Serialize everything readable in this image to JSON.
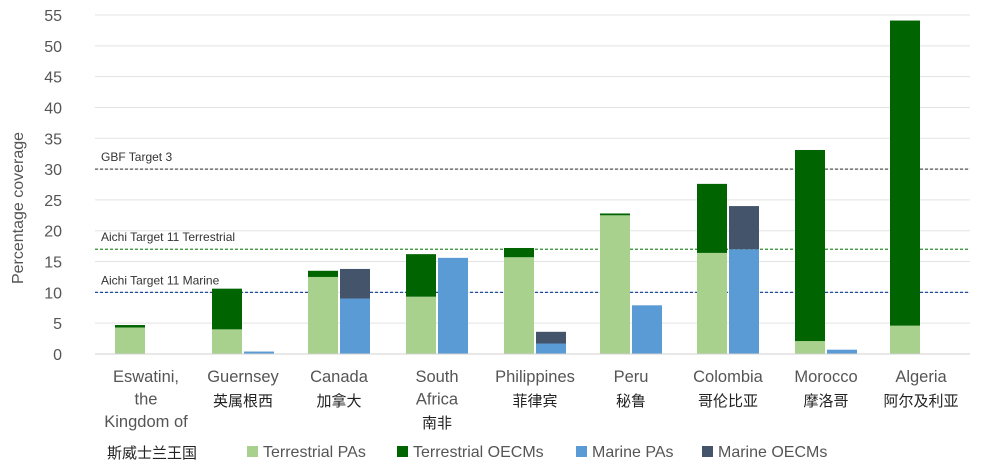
{
  "chart_data": {
    "type": "bar",
    "ylabel": "Percentage coverage",
    "ylim": [
      0,
      55
    ],
    "yticks": [
      0,
      5,
      10,
      15,
      20,
      25,
      30,
      35,
      40,
      45,
      50,
      55
    ],
    "grid": true,
    "categories": [
      {
        "en": [
          "Eswatini,",
          "the",
          "Kingdom of"
        ],
        "zh": "斯威士兰王国"
      },
      {
        "en": [
          "Guernsey"
        ],
        "zh": "英属根西"
      },
      {
        "en": [
          "Canada"
        ],
        "zh": "加拿大"
      },
      {
        "en": [
          "South",
          "Africa"
        ],
        "zh": "南非"
      },
      {
        "en": [
          "Philippines"
        ],
        "zh": "菲律宾"
      },
      {
        "en": [
          "Peru"
        ],
        "zh": "秘鲁"
      },
      {
        "en": [
          "Colombia"
        ],
        "zh": "哥伦比亚"
      },
      {
        "en": [
          "Morocco"
        ],
        "zh": "摩洛哥"
      },
      {
        "en": [
          "Algeria"
        ],
        "zh": "阿尔及利亚"
      }
    ],
    "series": [
      {
        "name": "Terrestrial PAs",
        "color": "#a9d18e",
        "stack": "terrestrial",
        "values": [
          4.3,
          4.0,
          12.5,
          9.3,
          15.7,
          22.5,
          16.4,
          2.1,
          4.6
        ]
      },
      {
        "name": "Terrestrial OECMs",
        "color": "#006400",
        "stack": "terrestrial",
        "values": [
          0.4,
          6.6,
          1.0,
          6.9,
          1.5,
          0.3,
          11.2,
          31.0,
          49.5
        ]
      },
      {
        "name": "Marine PAs",
        "color": "#5b9bd5",
        "stack": "marine",
        "values": [
          0,
          0.4,
          9.0,
          15.6,
          1.7,
          7.9,
          17.0,
          0.7,
          0
        ]
      },
      {
        "name": "Marine OECMs",
        "color": "#44546a",
        "stack": "marine",
        "values": [
          0,
          0,
          4.8,
          0,
          1.9,
          0,
          7.0,
          0,
          0
        ]
      }
    ],
    "reference_lines": [
      {
        "label": "GBF Target 3",
        "value": 30,
        "color": "#555555"
      },
      {
        "label": "Aichi Target 11 Terrestrial",
        "value": 17,
        "color": "#2e8b2e"
      },
      {
        "label": "Aichi Target 11 Marine",
        "value": 10,
        "color": "#1f4e9a"
      }
    ],
    "legend_position": "bottom"
  }
}
